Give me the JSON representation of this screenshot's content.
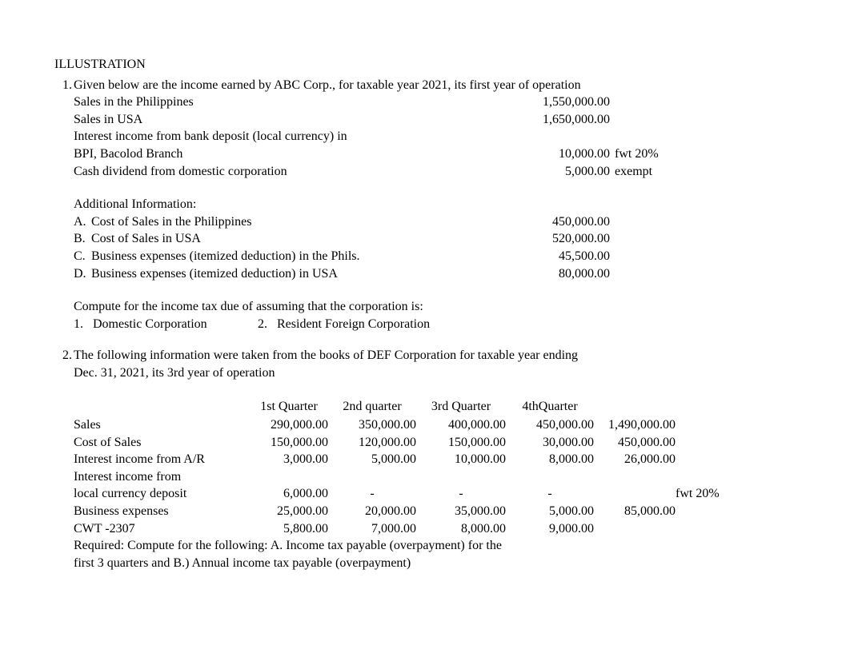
{
  "title": "ILLUSTRATION",
  "p1": {
    "num": "1.",
    "intro": "Given below are the income earned by ABC Corp., for taxable year 2021, its first year of operation",
    "rows": [
      {
        "label": "Sales in the Philippines",
        "value": "1,550,000.00",
        "note": ""
      },
      {
        "label": "Sales in USA",
        "value": "1,650,000.00",
        "note": ""
      },
      {
        "label": "Interest income from bank deposit (local currency) in",
        "value": "",
        "note": ""
      },
      {
        "label": "BPI, Bacolod Branch",
        "value": "10,000.00",
        "note": "fwt 20%"
      },
      {
        "label": "Cash dividend from domestic corporation",
        "value": "5,000.00",
        "note": "exempt"
      }
    ],
    "additional_header": "Additional Information:",
    "additional": [
      {
        "marker": "A.",
        "label": "Cost of Sales in the Philippines",
        "value": "450,000.00"
      },
      {
        "marker": "B.",
        "label": "Cost of Sales in USA",
        "value": "520,000.00"
      },
      {
        "marker": "C.",
        "label": "Business expenses (itemized deduction) in the Phils.",
        "value": "45,500.00"
      },
      {
        "marker": "D.",
        "label": "Business expenses (itemized deduction) in USA",
        "value": "80,000.00"
      }
    ],
    "compute_line": "Compute for the income tax due of   assuming that the corporation is:",
    "compute_opts": [
      {
        "marker": "1.",
        "text": "Domestic Corporation"
      },
      {
        "marker": "2.",
        "text": "Resident Foreign Corporation"
      }
    ]
  },
  "p2": {
    "num": "2.",
    "intro1": "The following information were taken from the books of   DEF Corporation for taxable year ending",
    "intro2": "Dec. 31, 2021, its 3rd year of operation",
    "headers": [
      "1st Quarter",
      "2nd quarter",
      "3rd Quarter",
      "4thQuarter",
      ""
    ],
    "rows": [
      {
        "label": "Sales",
        "vals": [
          "290,000.00",
          "350,000.00",
          "400,000.00",
          "450,000.00",
          "1,490,000.00"
        ],
        "note": ""
      },
      {
        "label": "Cost of Sales",
        "vals": [
          "150,000.00",
          "120,000.00",
          "150,000.00",
          "30,000.00",
          "450,000.00"
        ],
        "note": ""
      },
      {
        "label": "Interest income from A/R",
        "vals": [
          "3,000.00",
          "5,000.00",
          "10,000.00",
          "8,000.00",
          "26,000.00"
        ],
        "note": ""
      },
      {
        "label": "Interest income from",
        "vals": [
          "",
          "",
          "",
          "",
          ""
        ],
        "note": ""
      },
      {
        "label": "local currency deposit",
        "vals": [
          "6,000.00",
          "-",
          "-",
          "-",
          ""
        ],
        "note": "fwt 20%"
      },
      {
        "label": "Business expenses",
        "vals": [
          "25,000.00",
          "20,000.00",
          "35,000.00",
          "5,000.00",
          "85,000.00"
        ],
        "note": ""
      },
      {
        "label": "CWT -2307",
        "vals": [
          "5,800.00",
          "7,000.00",
          "8,000.00",
          "9,000.00",
          ""
        ],
        "note": ""
      }
    ],
    "req1": "Required:  Compute for the following:  A.  Income tax payable (overpayment) for the",
    "req2": "first 3 quarters   and B.) Annual income tax payable (overpayment)"
  }
}
